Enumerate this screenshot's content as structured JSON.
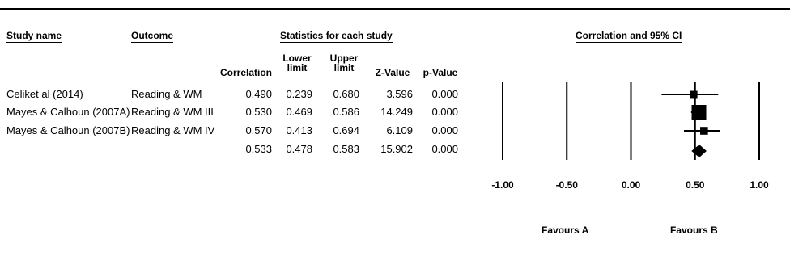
{
  "headers": {
    "study_name": "Study name",
    "outcome": "Outcome",
    "stats_group": "Statistics for each study",
    "plot_group": "Correlation and 95% CI",
    "correlation": "Correlation",
    "lower_limit": [
      "Lower",
      "limit"
    ],
    "upper_limit": [
      "Upper",
      "limit"
    ],
    "z_value": "Z-Value",
    "p_value": "p-Value"
  },
  "rows": [
    {
      "study": "Celiket al (2014)",
      "outcome": "Reading & WM",
      "correlation": "0.490",
      "lower": "0.239",
      "upper": "0.680",
      "z": "3.596",
      "p": "0.000"
    },
    {
      "study": "Mayes & Calhoun (2007A)",
      "outcome": "Reading & WM III",
      "correlation": "0.530",
      "lower": "0.469",
      "upper": "0.586",
      "z": "14.249",
      "p": "0.000"
    },
    {
      "study": "Mayes & Calhoun (2007B)",
      "outcome": "Reading & WM IV",
      "correlation": "0.570",
      "lower": "0.413",
      "upper": "0.694",
      "z": "6.109",
      "p": "0.000"
    }
  ],
  "summary": {
    "correlation": "0.533",
    "lower": "0.478",
    "upper": "0.583",
    "z": "15.902",
    "p": "0.000"
  },
  "favours": {
    "left": "Favours A",
    "right": "Favours B"
  },
  "chart_data": {
    "type": "forest",
    "xlim": [
      -1,
      1
    ],
    "ticks": [
      -1,
      -0.5,
      0,
      0.5,
      1
    ],
    "tick_labels": [
      "-1.00",
      "-0.50",
      "0.00",
      "0.50",
      "1.00"
    ],
    "studies": [
      {
        "label": "Celiket al (2014)",
        "estimate": 0.49,
        "lower": 0.239,
        "upper": 0.68,
        "relative_weight": 0.35
      },
      {
        "label": "Mayes & Calhoun (2007A)",
        "estimate": 0.53,
        "lower": 0.469,
        "upper": 0.586,
        "relative_weight": 1.0
      },
      {
        "label": "Mayes & Calhoun (2007B)",
        "estimate": 0.57,
        "lower": 0.413,
        "upper": 0.694,
        "relative_weight": 0.4
      }
    ],
    "summary": {
      "estimate": 0.533,
      "lower": 0.478,
      "upper": 0.583
    }
  }
}
